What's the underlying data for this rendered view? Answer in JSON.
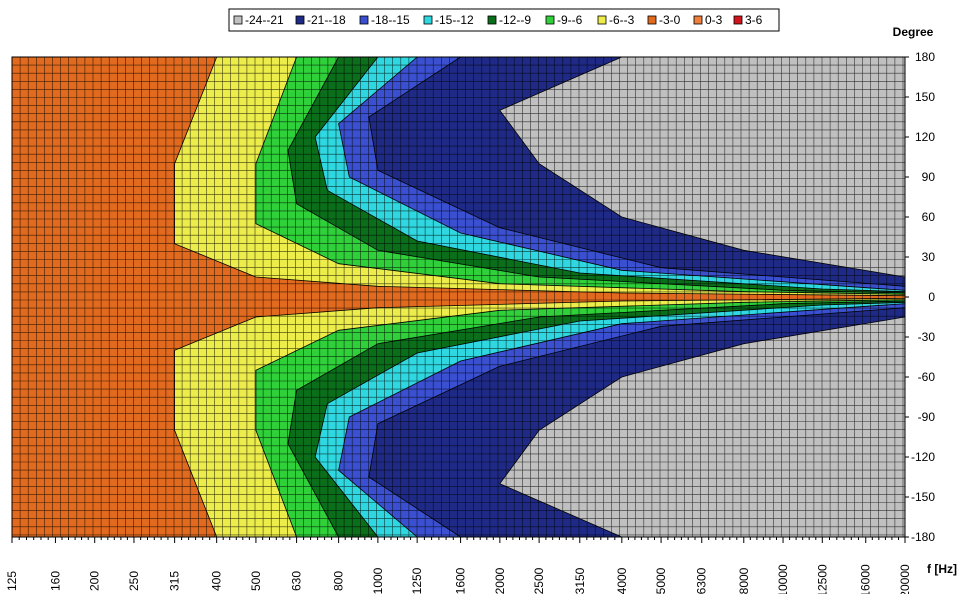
{
  "chart_data": {
    "type": "heatmap",
    "title": "",
    "xlabel": "f [Hz]",
    "ylabel": "Degree",
    "x_scale": "log",
    "x_ticks": [
      "125",
      "160",
      "200",
      "250",
      "315",
      "400",
      "500",
      "630",
      "800",
      "1000",
      "1250",
      "1600",
      "2000",
      "2500",
      "3150",
      "4000",
      "5000",
      "6300",
      "8000",
      "10000",
      "12500",
      "16000",
      "20000"
    ],
    "y_ticks": [
      180,
      150,
      120,
      90,
      60,
      30,
      0,
      -30,
      -60,
      -90,
      -120,
      -150,
      -180
    ],
    "ylim": [
      -180,
      180
    ],
    "grid": true,
    "legend_position": "top-center",
    "levels": [
      {
        "label": "-24--21",
        "color": "#c0c0c0"
      },
      {
        "label": "-21--18",
        "color": "#1f2a86"
      },
      {
        "label": "-18--15",
        "color": "#3a50d0"
      },
      {
        "label": "-15--12",
        "color": "#2fd8e0"
      },
      {
        "label": "-12--9",
        "color": "#0a6e1a"
      },
      {
        "label": "-9--6",
        "color": "#2fd03a"
      },
      {
        "label": "-6--3",
        "color": "#ecec4a"
      },
      {
        "label": "-3-0",
        "color": "#e26a1e"
      },
      {
        "label": "0-3",
        "color": "#ee7f3c"
      },
      {
        "label": "3-6",
        "color": "#d4141c"
      }
    ],
    "contours": [
      {
        "level": "-6--3",
        "points": [
          [
            400,
            180
          ],
          [
            315,
            100
          ],
          [
            315,
            40
          ],
          [
            500,
            15
          ],
          [
            1000,
            8
          ],
          [
            4000,
            3
          ],
          [
            20000,
            1
          ],
          [
            20000,
            -1
          ],
          [
            4000,
            -3
          ],
          [
            1000,
            -8
          ],
          [
            500,
            -15
          ],
          [
            315,
            -40
          ],
          [
            315,
            -100
          ],
          [
            400,
            -180
          ]
        ]
      },
      {
        "level": "-9--6",
        "points": [
          [
            630,
            180
          ],
          [
            500,
            100
          ],
          [
            500,
            55
          ],
          [
            800,
            25
          ],
          [
            2000,
            10
          ],
          [
            8000,
            4
          ],
          [
            20000,
            2
          ],
          [
            20000,
            -2
          ],
          [
            8000,
            -4
          ],
          [
            2000,
            -10
          ],
          [
            800,
            -25
          ],
          [
            500,
            -55
          ],
          [
            500,
            -100
          ],
          [
            630,
            -180
          ]
        ]
      },
      {
        "level": "-12--9",
        "points": [
          [
            800,
            180
          ],
          [
            600,
            110
          ],
          [
            630,
            70
          ],
          [
            1000,
            35
          ],
          [
            2500,
            15
          ],
          [
            10000,
            5
          ],
          [
            20000,
            3
          ],
          [
            20000,
            -3
          ],
          [
            10000,
            -5
          ],
          [
            2500,
            -15
          ],
          [
            1000,
            -35
          ],
          [
            630,
            -70
          ],
          [
            600,
            -110
          ],
          [
            800,
            -180
          ]
        ]
      },
      {
        "level": "-15--12",
        "points": [
          [
            1000,
            180
          ],
          [
            700,
            120
          ],
          [
            750,
            80
          ],
          [
            1250,
            42
          ],
          [
            3150,
            18
          ],
          [
            12500,
            6
          ],
          [
            20000,
            4
          ],
          [
            20000,
            -4
          ],
          [
            12500,
            -6
          ],
          [
            3150,
            -18
          ],
          [
            1250,
            -42
          ],
          [
            750,
            -80
          ],
          [
            700,
            -120
          ],
          [
            1000,
            -180
          ]
        ]
      },
      {
        "level": "-18--15",
        "points": [
          [
            1250,
            180
          ],
          [
            800,
            130
          ],
          [
            850,
            90
          ],
          [
            1600,
            48
          ],
          [
            4000,
            20
          ],
          [
            16000,
            7
          ],
          [
            20000,
            5
          ],
          [
            20000,
            -5
          ],
          [
            16000,
            -7
          ],
          [
            4000,
            -20
          ],
          [
            1600,
            -48
          ],
          [
            850,
            -90
          ],
          [
            800,
            -130
          ],
          [
            1250,
            -180
          ]
        ]
      },
      {
        "level": "-21--18",
        "points": [
          [
            1600,
            180
          ],
          [
            950,
            135
          ],
          [
            1000,
            95
          ],
          [
            2000,
            52
          ],
          [
            5000,
            22
          ],
          [
            20000,
            8
          ],
          [
            20000,
            -8
          ],
          [
            5000,
            -22
          ],
          [
            2000,
            -52
          ],
          [
            1000,
            -95
          ],
          [
            950,
            -135
          ],
          [
            1600,
            -180
          ]
        ]
      },
      {
        "level": "-24--21",
        "points": [
          [
            4000,
            180
          ],
          [
            2000,
            140
          ],
          [
            2500,
            100
          ],
          [
            4000,
            60
          ],
          [
            8000,
            35
          ],
          [
            20000,
            15
          ],
          [
            20000,
            -15
          ],
          [
            8000,
            -35
          ],
          [
            4000,
            -60
          ],
          [
            2500,
            -100
          ],
          [
            2000,
            -140
          ],
          [
            4000,
            -180
          ]
        ]
      }
    ]
  }
}
